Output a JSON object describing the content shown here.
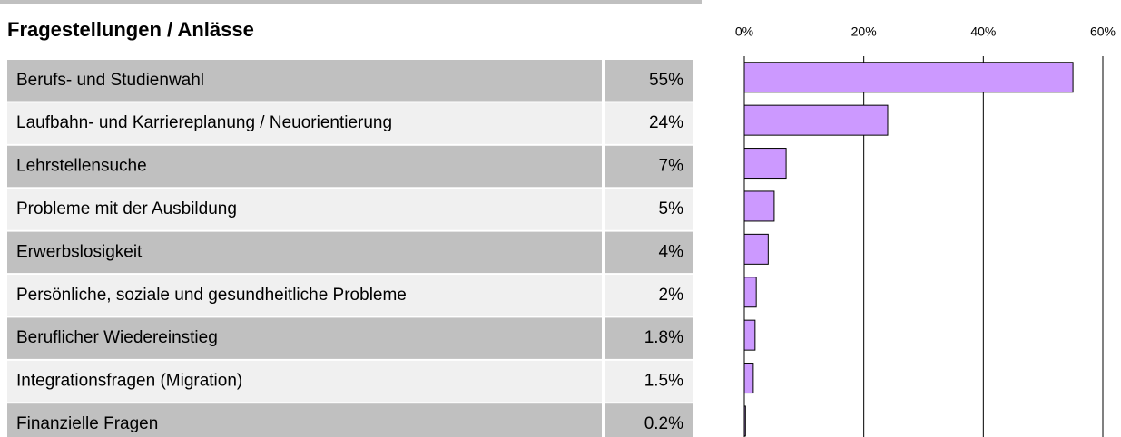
{
  "chart_data": {
    "type": "bar",
    "orientation": "horizontal",
    "title": "Fragestellungen / Anlässe",
    "categories": [
      "Berufs- und Studienwahl",
      "Laufbahn- und Karriereplanung / Neuorientierung",
      "Lehrstellensuche",
      "Probleme mit der Ausbildung",
      "Erwerbslosigkeit",
      "Persönliche, soziale und gesundheitliche Probleme",
      "Beruflicher Wiedereinstieg",
      "Integrationsfragen (Migration)",
      "Finanzielle Fragen"
    ],
    "values": [
      55,
      24,
      7,
      5,
      4,
      2,
      1.8,
      1.5,
      0.2
    ],
    "value_labels": [
      "55%",
      "24%",
      "7%",
      "5%",
      "4%",
      "2%",
      "1.8%",
      "1.5%",
      "0.2%"
    ],
    "color": "#cc99ff",
    "xlim": [
      0,
      60
    ],
    "xticks": [
      {
        "value": 0,
        "label": "0%"
      },
      {
        "value": 20,
        "label": "20%"
      },
      {
        "value": 40,
        "label": "40%"
      },
      {
        "value": 60,
        "label": "60%"
      }
    ],
    "grid": true
  }
}
